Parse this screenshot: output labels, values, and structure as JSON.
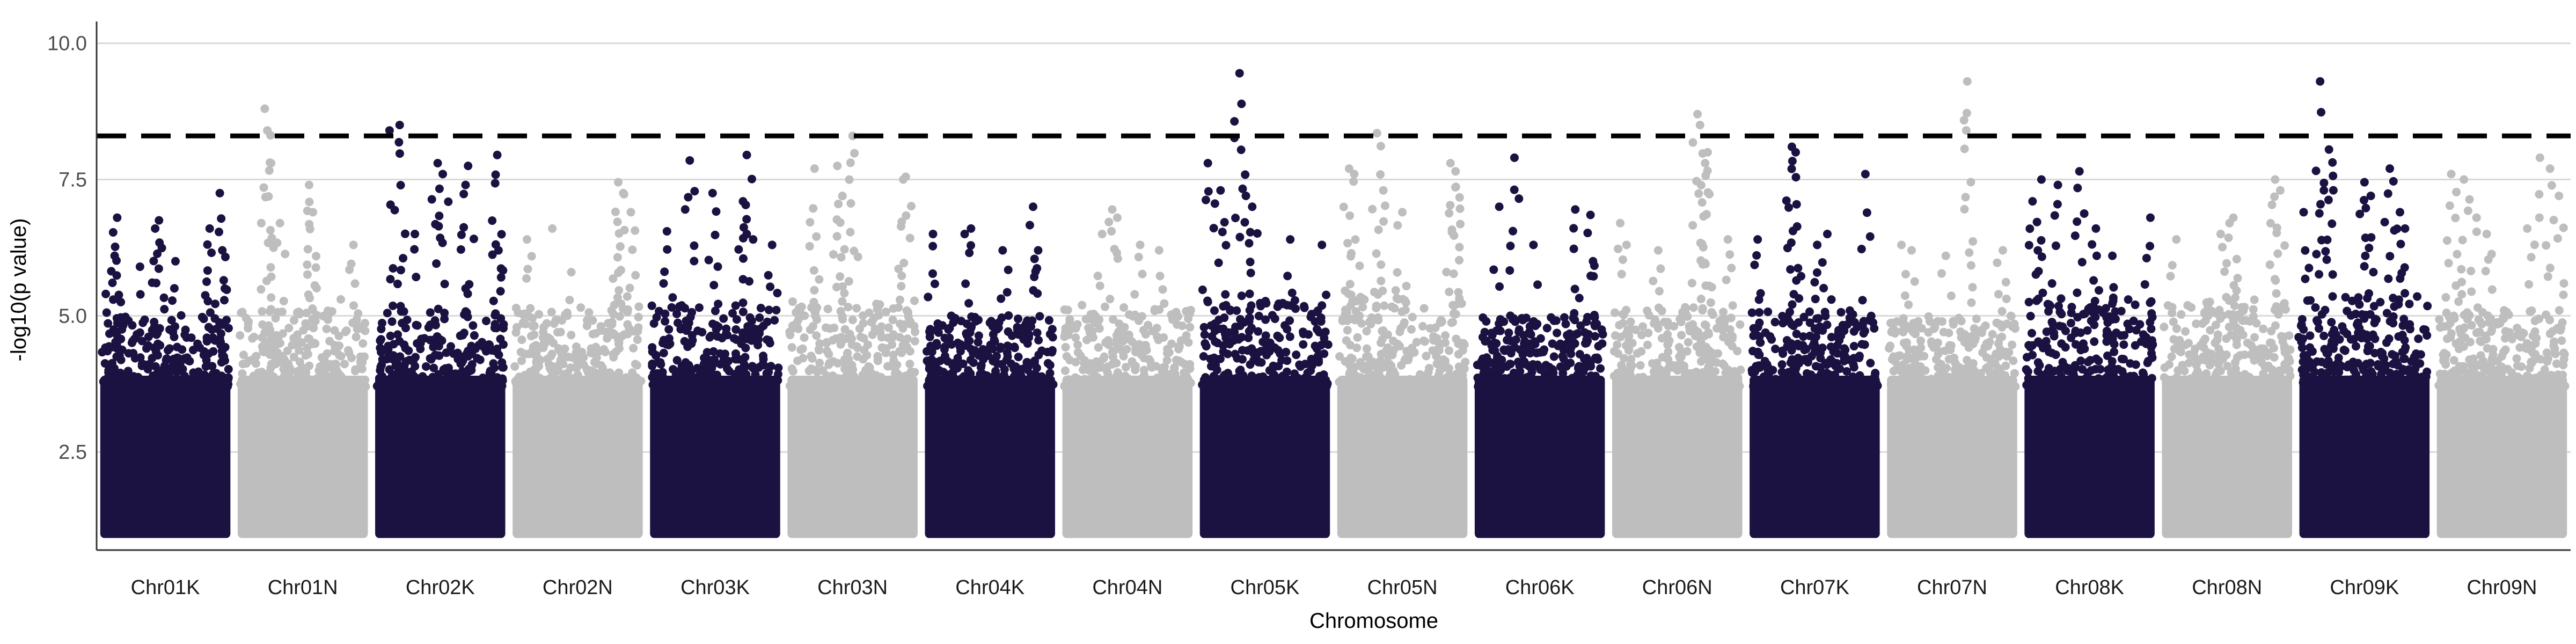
{
  "chart_data": {
    "type": "scatter",
    "subtype": "manhattan",
    "title": "",
    "xlabel": "Chromosome",
    "ylabel": "-log10(p value)",
    "ylim": [
      0.7,
      10.4
    ],
    "yticks": [
      2.5,
      5.0,
      7.5,
      10.0
    ],
    "ytick_labels": [
      "2.5",
      "5.0",
      "7.5",
      "10.0"
    ],
    "grid": "horizontal major",
    "threshold": {
      "value": 8.3,
      "style": "dashed",
      "color": "#000000"
    },
    "colors": {
      "odd": "#1c1242",
      "even": "#bebebe",
      "grid": "#d9d9d9",
      "axis": "#333333"
    },
    "categories": [
      "Chr01K",
      "Chr01N",
      "Chr02K",
      "Chr02N",
      "Chr03K",
      "Chr03N",
      "Chr04K",
      "Chr04N",
      "Chr05K",
      "Chr05N",
      "Chr06K",
      "Chr06N",
      "Chr07K",
      "Chr07N",
      "Chr08K",
      "Chr08N",
      "Chr09K",
      "Chr09N"
    ],
    "series": [
      {
        "category": "Chr01K",
        "band_top": 4.3,
        "peaks": [
          [
            0.03,
            5.4
          ],
          [
            0.1,
            6.1
          ],
          [
            0.12,
            6.8
          ],
          [
            0.3,
            5.9
          ],
          [
            0.42,
            6.6
          ],
          [
            0.45,
            6.75
          ],
          [
            0.58,
            6.0
          ],
          [
            0.85,
            6.6
          ],
          [
            0.93,
            7.25
          ],
          [
            0.95,
            6.2
          ],
          [
            0.97,
            5.5
          ]
        ]
      },
      {
        "category": "Chr01N",
        "band_top": 4.4,
        "peaks": [
          [
            0.2,
            8.8
          ],
          [
            0.22,
            8.4
          ],
          [
            0.25,
            7.8
          ],
          [
            0.32,
            6.7
          ],
          [
            0.55,
            7.4
          ],
          [
            0.58,
            6.9
          ],
          [
            0.8,
            5.3
          ],
          [
            0.9,
            6.3
          ]
        ]
      },
      {
        "category": "Chr02K",
        "band_top": 4.4,
        "peaks": [
          [
            0.1,
            8.4
          ],
          [
            0.18,
            8.5
          ],
          [
            0.3,
            6.5
          ],
          [
            0.48,
            7.8
          ],
          [
            0.52,
            7.6
          ],
          [
            0.7,
            7.4
          ],
          [
            0.72,
            7.75
          ],
          [
            0.95,
            7.95
          ],
          [
            0.96,
            6.2
          ]
        ]
      },
      {
        "category": "Chr02N",
        "band_top": 4.5,
        "peaks": [
          [
            0.1,
            6.4
          ],
          [
            0.3,
            6.6
          ],
          [
            0.45,
            5.8
          ],
          [
            0.82,
            7.45
          ],
          [
            0.86,
            7.25
          ],
          [
            0.92,
            6.9
          ]
        ]
      },
      {
        "category": "Chr03K",
        "band_top": 4.5,
        "peaks": [
          [
            0.12,
            6.55
          ],
          [
            0.3,
            7.85
          ],
          [
            0.48,
            7.25
          ],
          [
            0.72,
            7.1
          ],
          [
            0.75,
            7.95
          ],
          [
            0.8,
            6.4
          ],
          [
            0.95,
            6.3
          ]
        ]
      },
      {
        "category": "Chr03N",
        "band_top": 4.6,
        "peaks": [
          [
            0.2,
            7.7
          ],
          [
            0.38,
            7.75
          ],
          [
            0.42,
            7.2
          ],
          [
            0.5,
            8.3
          ],
          [
            0.9,
            7.5
          ],
          [
            0.92,
            7.55
          ]
        ]
      },
      {
        "category": "Chr04K",
        "band_top": 4.3,
        "peaks": [
          [
            0.05,
            6.5
          ],
          [
            0.3,
            6.5
          ],
          [
            0.35,
            6.6
          ],
          [
            0.6,
            6.2
          ],
          [
            0.84,
            7.0
          ],
          [
            0.88,
            6.2
          ]
        ]
      },
      {
        "category": "Chr04N",
        "band_top": 4.5,
        "peaks": [
          [
            0.3,
            6.5
          ],
          [
            0.38,
            6.95
          ],
          [
            0.42,
            6.8
          ],
          [
            0.6,
            6.3
          ],
          [
            0.75,
            6.2
          ]
        ]
      },
      {
        "category": "Chr05K",
        "band_top": 4.6,
        "peaks": [
          [
            0.05,
            7.8
          ],
          [
            0.15,
            7.3
          ],
          [
            0.3,
            9.45
          ],
          [
            0.35,
            7.2
          ],
          [
            0.4,
            7.0
          ],
          [
            0.7,
            6.4
          ],
          [
            0.95,
            6.3
          ]
        ]
      },
      {
        "category": "Chr05N",
        "band_top": 4.8,
        "peaks": [
          [
            0.08,
            7.7
          ],
          [
            0.12,
            7.6
          ],
          [
            0.3,
            8.35
          ],
          [
            0.35,
            7.3
          ],
          [
            0.5,
            6.9
          ],
          [
            0.88,
            7.8
          ],
          [
            0.92,
            7.65
          ]
        ]
      },
      {
        "category": "Chr06K",
        "band_top": 4.3,
        "peaks": [
          [
            0.18,
            7.0
          ],
          [
            0.3,
            7.9
          ],
          [
            0.45,
            6.3
          ],
          [
            0.78,
            6.95
          ],
          [
            0.9,
            6.85
          ],
          [
            0.92,
            6.0
          ]
        ]
      },
      {
        "category": "Chr06N",
        "band_top": 4.5,
        "peaks": [
          [
            0.05,
            6.7
          ],
          [
            0.1,
            6.3
          ],
          [
            0.35,
            6.2
          ],
          [
            0.66,
            8.7
          ],
          [
            0.68,
            8.5
          ],
          [
            0.72,
            7.8
          ],
          [
            0.74,
            8.0
          ],
          [
            0.9,
            6.4
          ]
        ]
      },
      {
        "category": "Chr07K",
        "band_top": 4.4,
        "peaks": [
          [
            0.05,
            6.4
          ],
          [
            0.32,
            8.1
          ],
          [
            0.35,
            8.0
          ],
          [
            0.52,
            6.3
          ],
          [
            0.6,
            6.5
          ],
          [
            0.9,
            7.6
          ]
        ]
      },
      {
        "category": "Chr07N",
        "band_top": 4.3,
        "peaks": [
          [
            0.1,
            6.3
          ],
          [
            0.18,
            6.2
          ],
          [
            0.45,
            6.1
          ],
          [
            0.62,
            9.3
          ],
          [
            0.9,
            6.2
          ]
        ]
      },
      {
        "category": "Chr08K",
        "band_top": 4.6,
        "peaks": [
          [
            0.05,
            7.1
          ],
          [
            0.12,
            7.5
          ],
          [
            0.25,
            7.4
          ],
          [
            0.42,
            7.65
          ],
          [
            0.55,
            6.6
          ],
          [
            0.68,
            6.1
          ],
          [
            0.98,
            6.8
          ]
        ]
      },
      {
        "category": "Chr08N",
        "band_top": 4.6,
        "peaks": [
          [
            0.1,
            6.4
          ],
          [
            0.45,
            6.5
          ],
          [
            0.52,
            6.7
          ],
          [
            0.55,
            6.8
          ],
          [
            0.88,
            7.5
          ],
          [
            0.92,
            7.3
          ]
        ]
      },
      {
        "category": "Chr09K",
        "band_top": 4.7,
        "peaks": [
          [
            0.02,
            6.9
          ],
          [
            0.15,
            9.3
          ],
          [
            0.22,
            8.05
          ],
          [
            0.5,
            7.45
          ],
          [
            0.55,
            7.2
          ],
          [
            0.7,
            7.7
          ],
          [
            0.78,
            6.9
          ],
          [
            0.82,
            6.6
          ]
        ]
      },
      {
        "category": "Chr09N",
        "band_top": 4.4,
        "peaks": [
          [
            0.1,
            7.6
          ],
          [
            0.2,
            7.5
          ],
          [
            0.3,
            6.8
          ],
          [
            0.38,
            6.5
          ],
          [
            0.7,
            6.6
          ],
          [
            0.8,
            7.9
          ],
          [
            0.88,
            7.7
          ],
          [
            0.95,
            7.2
          ]
        ]
      }
    ]
  }
}
